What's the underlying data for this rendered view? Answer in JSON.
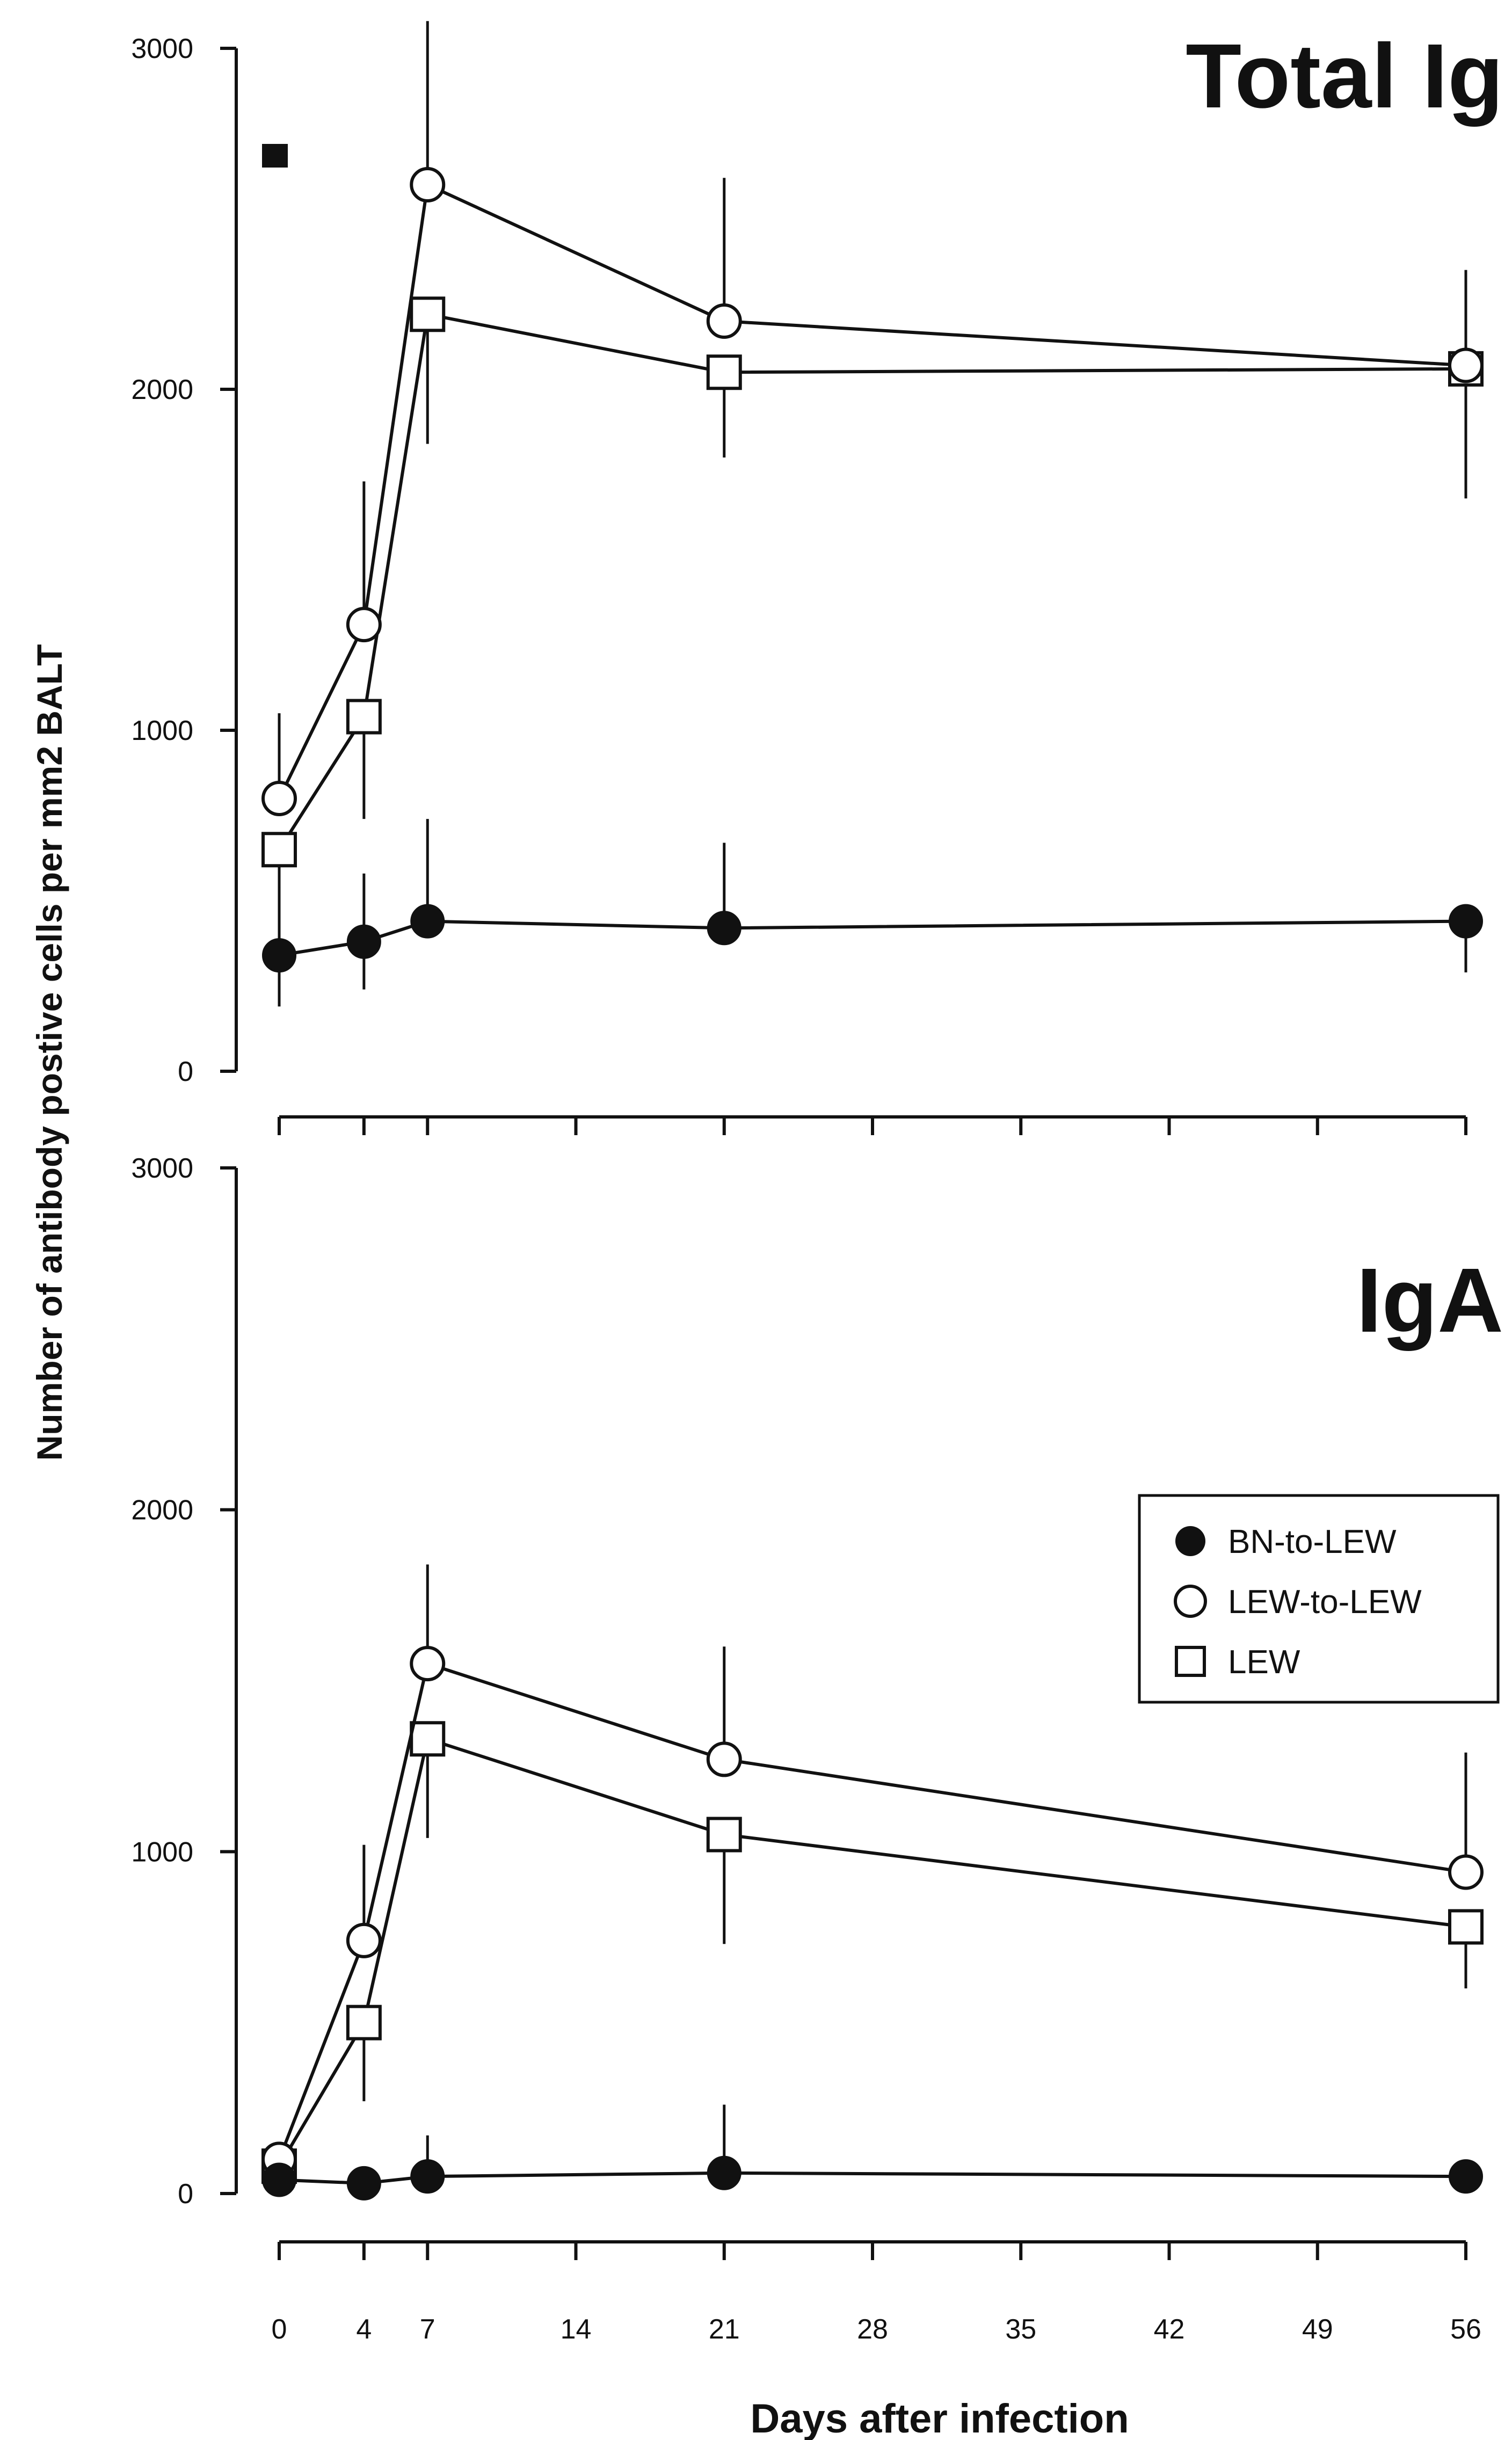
{
  "chart_data": [
    {
      "type": "line",
      "title": "Total Ig",
      "ylabel": "Number of antibody postive cells per mm2 BALT",
      "ylim": [
        0,
        3000
      ],
      "yticks": [
        0,
        1000,
        2000,
        3000
      ],
      "x": [
        0,
        4,
        7,
        21,
        56
      ],
      "series": [
        {
          "name": "BN-to-LEW",
          "marker": "filled-circle",
          "values": [
            340,
            380,
            440,
            420,
            440
          ],
          "err_upper": [
            200,
            200,
            300,
            250,
            0
          ],
          "err_lower": [
            150,
            140,
            0,
            0,
            150
          ]
        },
        {
          "name": "LEW-to-LEW",
          "marker": "open-circle",
          "values": [
            800,
            1310,
            2600,
            2200,
            2070
          ],
          "err_upper": [
            250,
            420,
            480,
            420,
            280
          ],
          "err_lower": [
            0,
            0,
            0,
            0,
            0
          ]
        },
        {
          "name": "LEW",
          "marker": "open-square",
          "values": [
            650,
            1040,
            2220,
            2050,
            2060
          ],
          "err_upper": [
            0,
            0,
            0,
            0,
            0
          ],
          "err_lower": [
            140,
            300,
            380,
            250,
            380
          ]
        }
      ],
      "panel_marker": "filled-square"
    },
    {
      "type": "line",
      "title": "IgA",
      "ylabel": "Number of antibody postive cells per mm2 BALT",
      "xlabel": "Days after infection",
      "ylim": [
        0,
        3000
      ],
      "yticks": [
        0,
        1000,
        2000,
        3000
      ],
      "xlim": [
        0,
        56
      ],
      "xticks": [
        0,
        4,
        7,
        14,
        21,
        28,
        35,
        42,
        49,
        56
      ],
      "x": [
        0,
        4,
        7,
        21,
        56
      ],
      "series": [
        {
          "name": "BN-to-LEW",
          "marker": "filled-circle",
          "values": [
            40,
            30,
            50,
            60,
            50
          ],
          "err_upper": [
            0,
            0,
            120,
            200,
            0
          ],
          "err_lower": [
            0,
            0,
            0,
            0,
            0
          ]
        },
        {
          "name": "LEW-to-LEW",
          "marker": "open-circle",
          "values": [
            100,
            740,
            1550,
            1270,
            940
          ],
          "err_upper": [
            0,
            280,
            290,
            330,
            350
          ],
          "err_lower": [
            0,
            0,
            0,
            0,
            0
          ]
        },
        {
          "name": "LEW",
          "marker": "open-square",
          "values": [
            80,
            500,
            1330,
            1050,
            780
          ],
          "err_upper": [
            0,
            0,
            0,
            0,
            0
          ],
          "err_lower": [
            0,
            230,
            290,
            320,
            180
          ]
        }
      ],
      "legend": [
        "BN-to-LEW",
        "LEW-to-LEW",
        "LEW"
      ],
      "legend_position": "right"
    }
  ]
}
